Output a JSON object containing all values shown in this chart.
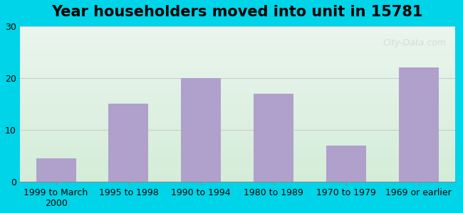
{
  "title": "Year householders moved into unit in 15781",
  "categories": [
    "1999 to March\n2000",
    "1995 to 1998",
    "1990 to 1994",
    "1980 to 1989",
    "1970 to 1979",
    "1969 or earlier"
  ],
  "values": [
    4.5,
    15.0,
    20.0,
    17.0,
    7.0,
    22.0
  ],
  "bar_color": "#b0a0cc",
  "background_outer": "#00d4e8",
  "background_inner_top": "#eaf5ee",
  "background_inner_bottom": "#d4ecd8",
  "ylim": [
    0,
    30
  ],
  "yticks": [
    0,
    10,
    20,
    30
  ],
  "grid_color": "#cccccc",
  "title_fontsize": 15,
  "tick_fontsize": 9,
  "watermark": "City-Data.com"
}
